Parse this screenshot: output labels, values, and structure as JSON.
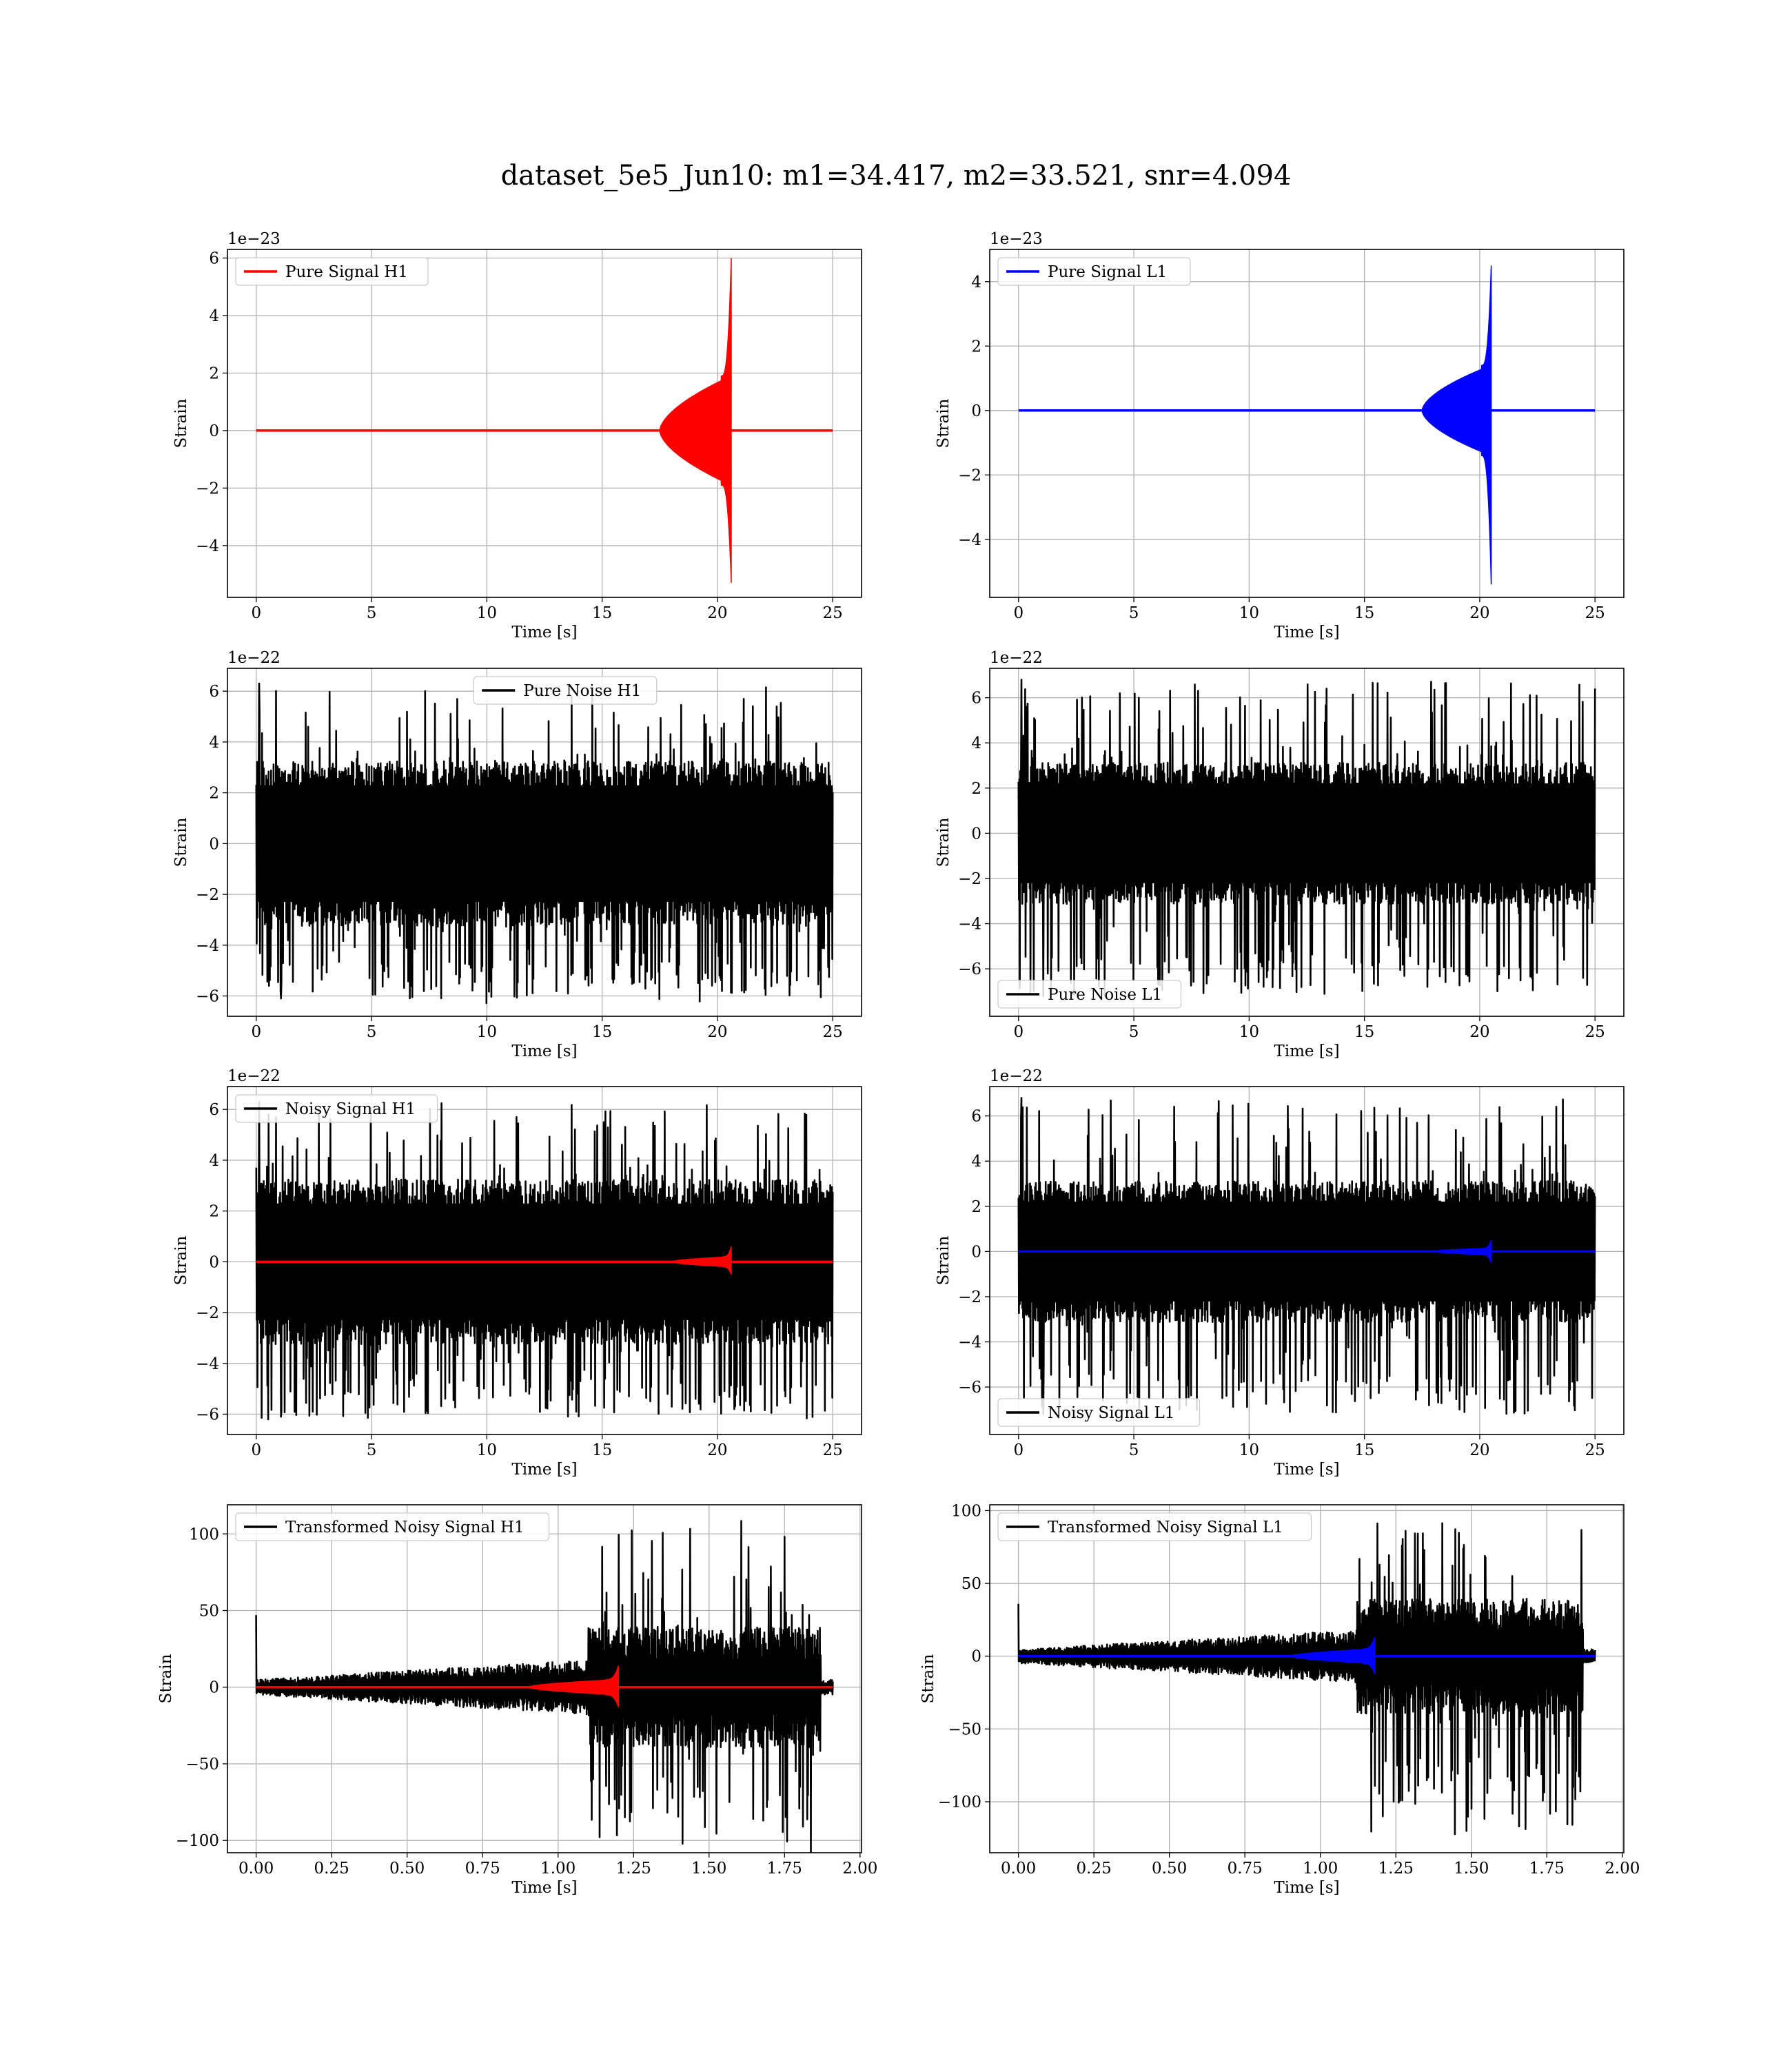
{
  "figure": {
    "suptitle": "dataset_5e5_Jun10: m1=34.417, m2=33.521, snr=4.094"
  },
  "colors": {
    "h1_signal": "#ff0000",
    "l1_signal": "#0000ff",
    "noise": "#000000",
    "grid": "#b0b0b0",
    "legend_border": "#cccccc"
  },
  "chart_data": [
    {
      "id": "pure-signal-h1",
      "type": "line",
      "xlabel": "Time [s]",
      "ylabel": "Strain",
      "offset_text": "1e−23",
      "xlim": [
        -1.25,
        26.25
      ],
      "ylim": [
        -5.8,
        6.3
      ],
      "xticks": [
        0,
        5,
        10,
        15,
        20,
        25
      ],
      "xtick_labels": [
        "0",
        "5",
        "10",
        "15",
        "20",
        "25"
      ],
      "yticks": [
        -4,
        -2,
        0,
        2,
        4,
        6
      ],
      "ytick_labels": [
        "−4",
        "−2",
        "0",
        "2",
        "4",
        "6"
      ],
      "grid": true,
      "legend_position": "top-left",
      "series": [
        {
          "name": "Pure Signal H1",
          "color": "#ff0000",
          "kind": "chirp",
          "x_start": 0,
          "x_end": 25,
          "chirp_start": 17.5,
          "merger": 20.6,
          "plateau": 1.9,
          "peak_pos": 6.0,
          "peak_neg": -5.3
        }
      ]
    },
    {
      "id": "pure-signal-l1",
      "type": "line",
      "xlabel": "Time [s]",
      "ylabel": "Strain",
      "offset_text": "1e−23",
      "xlim": [
        -1.25,
        26.25
      ],
      "ylim": [
        -5.8,
        5.0
      ],
      "xticks": [
        0,
        5,
        10,
        15,
        20,
        25
      ],
      "xtick_labels": [
        "0",
        "5",
        "10",
        "15",
        "20",
        "25"
      ],
      "yticks": [
        -4,
        -2,
        0,
        2,
        4
      ],
      "ytick_labels": [
        "−4",
        "−2",
        "0",
        "2",
        "4"
      ],
      "grid": true,
      "legend_position": "top-left",
      "series": [
        {
          "name": "Pure Signal L1",
          "color": "#0000ff",
          "kind": "chirp",
          "x_start": 0,
          "x_end": 25,
          "chirp_start": 17.5,
          "merger": 20.5,
          "plateau": 1.4,
          "peak_pos": 4.5,
          "peak_neg": -5.4
        }
      ]
    },
    {
      "id": "pure-noise-h1",
      "type": "line",
      "xlabel": "Time [s]",
      "ylabel": "Strain",
      "offset_text": "1e−22",
      "xlim": [
        -1.25,
        26.25
      ],
      "ylim": [
        -6.8,
        6.9
      ],
      "xticks": [
        0,
        5,
        10,
        15,
        20,
        25
      ],
      "xtick_labels": [
        "0",
        "5",
        "10",
        "15",
        "20",
        "25"
      ],
      "yticks": [
        -6,
        -4,
        -2,
        0,
        2,
        4,
        6
      ],
      "ytick_labels": [
        "−6",
        "−4",
        "−2",
        "0",
        "2",
        "4",
        "6"
      ],
      "grid": true,
      "legend_position": "top-center",
      "series": [
        {
          "name": "Pure Noise H1",
          "color": "#000000",
          "kind": "noise",
          "x_start": 0,
          "x_end": 25,
          "band": 2.7,
          "spike_pos": 6.3,
          "spike_neg": -6.1
        }
      ]
    },
    {
      "id": "pure-noise-l1",
      "type": "line",
      "xlabel": "Time [s]",
      "ylabel": "Strain",
      "offset_text": "1e−22",
      "xlim": [
        -1.25,
        26.25
      ],
      "ylim": [
        -8.1,
        7.3
      ],
      "xticks": [
        0,
        5,
        10,
        15,
        20,
        25
      ],
      "xtick_labels": [
        "0",
        "5",
        "10",
        "15",
        "20",
        "25"
      ],
      "yticks": [
        -6,
        -4,
        -2,
        0,
        2,
        4,
        6
      ],
      "ytick_labels": [
        "−6",
        "−4",
        "−2",
        "0",
        "2",
        "4",
        "6"
      ],
      "grid": true,
      "legend_position": "bottom-left",
      "series": [
        {
          "name": "Pure Noise L1",
          "color": "#000000",
          "kind": "noise",
          "x_start": 0,
          "x_end": 25,
          "band": 2.6,
          "spike_pos": 6.8,
          "spike_neg": -7.2
        }
      ]
    },
    {
      "id": "noisy-signal-h1",
      "type": "line",
      "xlabel": "Time [s]",
      "ylabel": "Strain",
      "offset_text": "1e−22",
      "xlim": [
        -1.25,
        26.25
      ],
      "ylim": [
        -6.8,
        6.9
      ],
      "xticks": [
        0,
        5,
        10,
        15,
        20,
        25
      ],
      "xtick_labels": [
        "0",
        "5",
        "10",
        "15",
        "20",
        "25"
      ],
      "yticks": [
        -6,
        -4,
        -2,
        0,
        2,
        4,
        6
      ],
      "ytick_labels": [
        "−6",
        "−4",
        "−2",
        "0",
        "2",
        "4",
        "6"
      ],
      "grid": true,
      "legend_position": "top-left",
      "series": [
        {
          "name": "Noisy Signal H1",
          "color": "#000000",
          "kind": "noise",
          "x_start": 0,
          "x_end": 25,
          "band": 2.7,
          "spike_pos": 6.3,
          "spike_neg": -6.1
        },
        {
          "color": "#ff0000",
          "kind": "chirp",
          "x_start": 0,
          "x_end": 25,
          "chirp_start": 18.0,
          "merger": 20.6,
          "plateau": 0.2,
          "peak_pos": 0.6,
          "peak_neg": -0.5
        }
      ]
    },
    {
      "id": "noisy-signal-l1",
      "type": "line",
      "xlabel": "Time [s]",
      "ylabel": "Strain",
      "offset_text": "1e−22",
      "xlim": [
        -1.25,
        26.25
      ],
      "ylim": [
        -8.1,
        7.3
      ],
      "xticks": [
        0,
        5,
        10,
        15,
        20,
        25
      ],
      "xtick_labels": [
        "0",
        "5",
        "10",
        "15",
        "20",
        "25"
      ],
      "yticks": [
        -6,
        -4,
        -2,
        0,
        2,
        4,
        6
      ],
      "ytick_labels": [
        "−6",
        "−4",
        "−2",
        "0",
        "2",
        "4",
        "6"
      ],
      "grid": true,
      "legend_position": "bottom-left",
      "series": [
        {
          "name": "Noisy Signal L1",
          "color": "#000000",
          "kind": "noise",
          "x_start": 0,
          "x_end": 25,
          "band": 2.6,
          "spike_pos": 6.8,
          "spike_neg": -7.2
        },
        {
          "color": "#0000ff",
          "kind": "chirp",
          "x_start": 0,
          "x_end": 25,
          "chirp_start": 18.0,
          "merger": 20.5,
          "plateau": 0.15,
          "peak_pos": 0.5,
          "peak_neg": -0.5
        }
      ]
    },
    {
      "id": "transformed-noisy-signal-h1",
      "type": "line",
      "xlabel": "Time [s]",
      "ylabel": "Strain",
      "offset_text": "",
      "xlim": [
        -0.095,
        2.005
      ],
      "ylim": [
        -108,
        119
      ],
      "xticks": [
        0,
        0.25,
        0.5,
        0.75,
        1.0,
        1.25,
        1.5,
        1.75,
        2.0
      ],
      "xtick_labels": [
        "0.00",
        "0.25",
        "0.50",
        "0.75",
        "1.00",
        "1.25",
        "1.50",
        "1.75",
        "2.00"
      ],
      "yticks": [
        -100,
        -50,
        0,
        50,
        100
      ],
      "ytick_labels": [
        "−100",
        "−50",
        "0",
        "50",
        "100"
      ],
      "grid": true,
      "legend_position": "top-left",
      "series": [
        {
          "name": "Transformed Noisy Signal H1",
          "color": "#000000",
          "kind": "whitened",
          "x_start": 0,
          "x_end": 1.91,
          "jump": 1.1,
          "cut": 1.87,
          "pre_amp": [
            4,
            15
          ],
          "post_amp": 33,
          "spike_pos": 110,
          "spike_neg": -98,
          "start_spike": 47
        },
        {
          "color": "#ff0000",
          "kind": "chirp",
          "x_start": 0,
          "x_end": 1.91,
          "chirp_start": 0.9,
          "merger": 1.2,
          "plateau": 5,
          "peak_pos": 14,
          "peak_neg": -13
        }
      ]
    },
    {
      "id": "transformed-noisy-signal-l1",
      "type": "line",
      "xlabel": "Time [s]",
      "ylabel": "Strain",
      "offset_text": "",
      "xlim": [
        -0.095,
        2.005
      ],
      "ylim": [
        -135,
        104
      ],
      "xticks": [
        0,
        0.25,
        0.5,
        0.75,
        1.0,
        1.25,
        1.5,
        1.75,
        2.0
      ],
      "xtick_labels": [
        "0.00",
        "0.25",
        "0.50",
        "0.75",
        "1.00",
        "1.25",
        "1.50",
        "1.75",
        "2.00"
      ],
      "yticks": [
        -100,
        -50,
        0,
        50,
        100
      ],
      "ytick_labels": [
        "−100",
        "−50",
        "0",
        "50",
        "100"
      ],
      "grid": true,
      "legend_position": "top-left",
      "series": [
        {
          "name": "Transformed Noisy Signal L1",
          "color": "#000000",
          "kind": "whitened",
          "x_start": 0,
          "x_end": 1.91,
          "jump": 1.12,
          "cut": 1.87,
          "pre_amp": [
            4,
            15
          ],
          "post_amp": 33,
          "spike_pos": 93,
          "spike_neg": -124,
          "start_spike": 36
        },
        {
          "color": "#0000ff",
          "kind": "chirp",
          "x_start": 0,
          "x_end": 1.91,
          "chirp_start": 0.9,
          "merger": 1.18,
          "plateau": 5,
          "peak_pos": 13,
          "peak_neg": -12
        }
      ]
    }
  ]
}
